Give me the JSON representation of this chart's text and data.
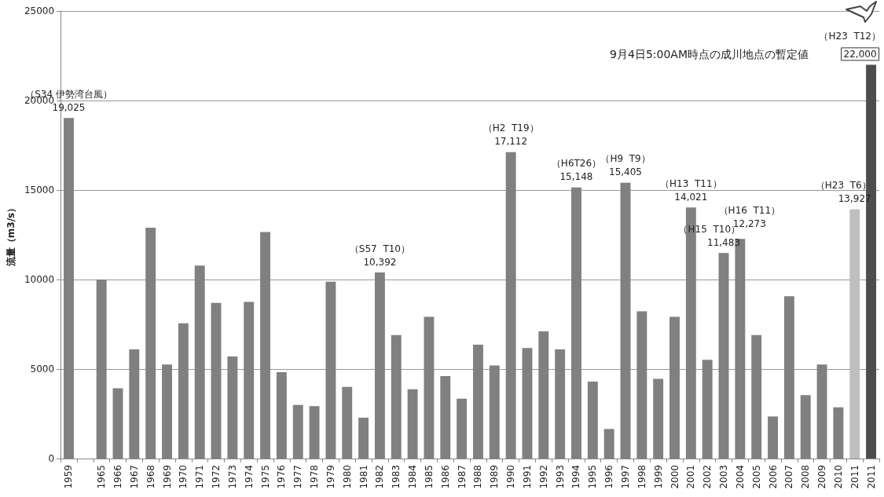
{
  "chart_data": {
    "type": "bar",
    "ylabel": "流量（m3/s）",
    "categories": [
      "1959",
      null,
      "1965",
      "1966",
      "1967",
      "1968",
      "1969",
      "1970",
      "1971",
      "1972",
      "1973",
      "1974",
      "1975",
      "1976",
      "1977",
      "1978",
      "1979",
      "1980",
      "1981",
      "1982",
      "1983",
      "1984",
      "1985",
      "1986",
      "1987",
      "1988",
      "1989",
      "1990",
      "1991",
      "1992",
      "1993",
      "1994",
      "1995",
      "1996",
      "1997",
      "1998",
      "1999",
      "2000",
      "2001",
      "2002",
      "2003",
      "2004",
      "2005",
      "2006",
      "2007",
      "2008",
      "2009",
      "2010",
      "2011",
      "2011"
    ],
    "values": [
      19025,
      null,
      10000,
      3920,
      6100,
      12900,
      5250,
      7550,
      10780,
      8700,
      5700,
      8750,
      12650,
      4830,
      2990,
      2930,
      9880,
      4000,
      2280,
      10392,
      6900,
      3870,
      7920,
      4610,
      3340,
      6360,
      5200,
      17112,
      6170,
      7100,
      6100,
      15148,
      4300,
      1650,
      15405,
      8220,
      4450,
      7920,
      14021,
      5520,
      11483,
      12273,
      6900,
      2350,
      9070,
      3540,
      5250,
      2860,
      13927,
      22000
    ],
    "colors": [
      "#808080",
      null,
      "#808080",
      "#808080",
      "#808080",
      "#808080",
      "#808080",
      "#808080",
      "#808080",
      "#808080",
      "#808080",
      "#808080",
      "#808080",
      "#808080",
      "#808080",
      "#808080",
      "#808080",
      "#808080",
      "#808080",
      "#808080",
      "#808080",
      "#808080",
      "#808080",
      "#808080",
      "#808080",
      "#808080",
      "#808080",
      "#808080",
      "#808080",
      "#808080",
      "#808080",
      "#808080",
      "#808080",
      "#808080",
      "#808080",
      "#808080",
      "#808080",
      "#808080",
      "#808080",
      "#808080",
      "#808080",
      "#808080",
      "#808080",
      "#808080",
      "#808080",
      "#808080",
      "#808080",
      "#808080",
      "#bfbfbf",
      "#4d4d4d"
    ],
    "value_labels": [
      "19,025",
      null,
      null,
      null,
      null,
      null,
      null,
      null,
      null,
      null,
      null,
      null,
      null,
      null,
      null,
      null,
      null,
      null,
      null,
      "10,392",
      null,
      null,
      null,
      null,
      null,
      null,
      null,
      "17,112",
      null,
      null,
      null,
      "15,148",
      null,
      null,
      "15,405",
      null,
      null,
      null,
      "14,021",
      null,
      "11,483",
      "12,273",
      null,
      null,
      null,
      null,
      null,
      null,
      "13,927",
      "22,000"
    ],
    "annotations": [
      {
        "text": "（S34 伊勢湾台風）",
        "x": "1959",
        "y": 19025
      },
      {
        "text": "（S57  T10）",
        "x": "1982",
        "y": 10392
      },
      {
        "text": "（H2  T19）",
        "x": "1990",
        "y": 17112
      },
      {
        "text": "（H6T26）",
        "x": "1994",
        "y": 15148
      },
      {
        "text": "（H9  T9）",
        "x": "1997",
        "y": 15405
      },
      {
        "text": "（H13  T11）",
        "x": "2001",
        "y": 14021
      },
      {
        "text": "（H15  T10）",
        "x": "2003",
        "y": 11483
      },
      {
        "text": "（H16  T11）",
        "x": "2004",
        "y": 12273
      },
      {
        "text": "（H23  T6）",
        "x": "2011",
        "y": 13927
      },
      "（H23  T12）",
      "9月4日5:00AM時点の成川地点の暫定値"
    ],
    "ylim": [
      0,
      25000
    ],
    "yticks": [
      0,
      5000,
      10000,
      15000,
      20000,
      25000
    ],
    "grid": "y"
  }
}
